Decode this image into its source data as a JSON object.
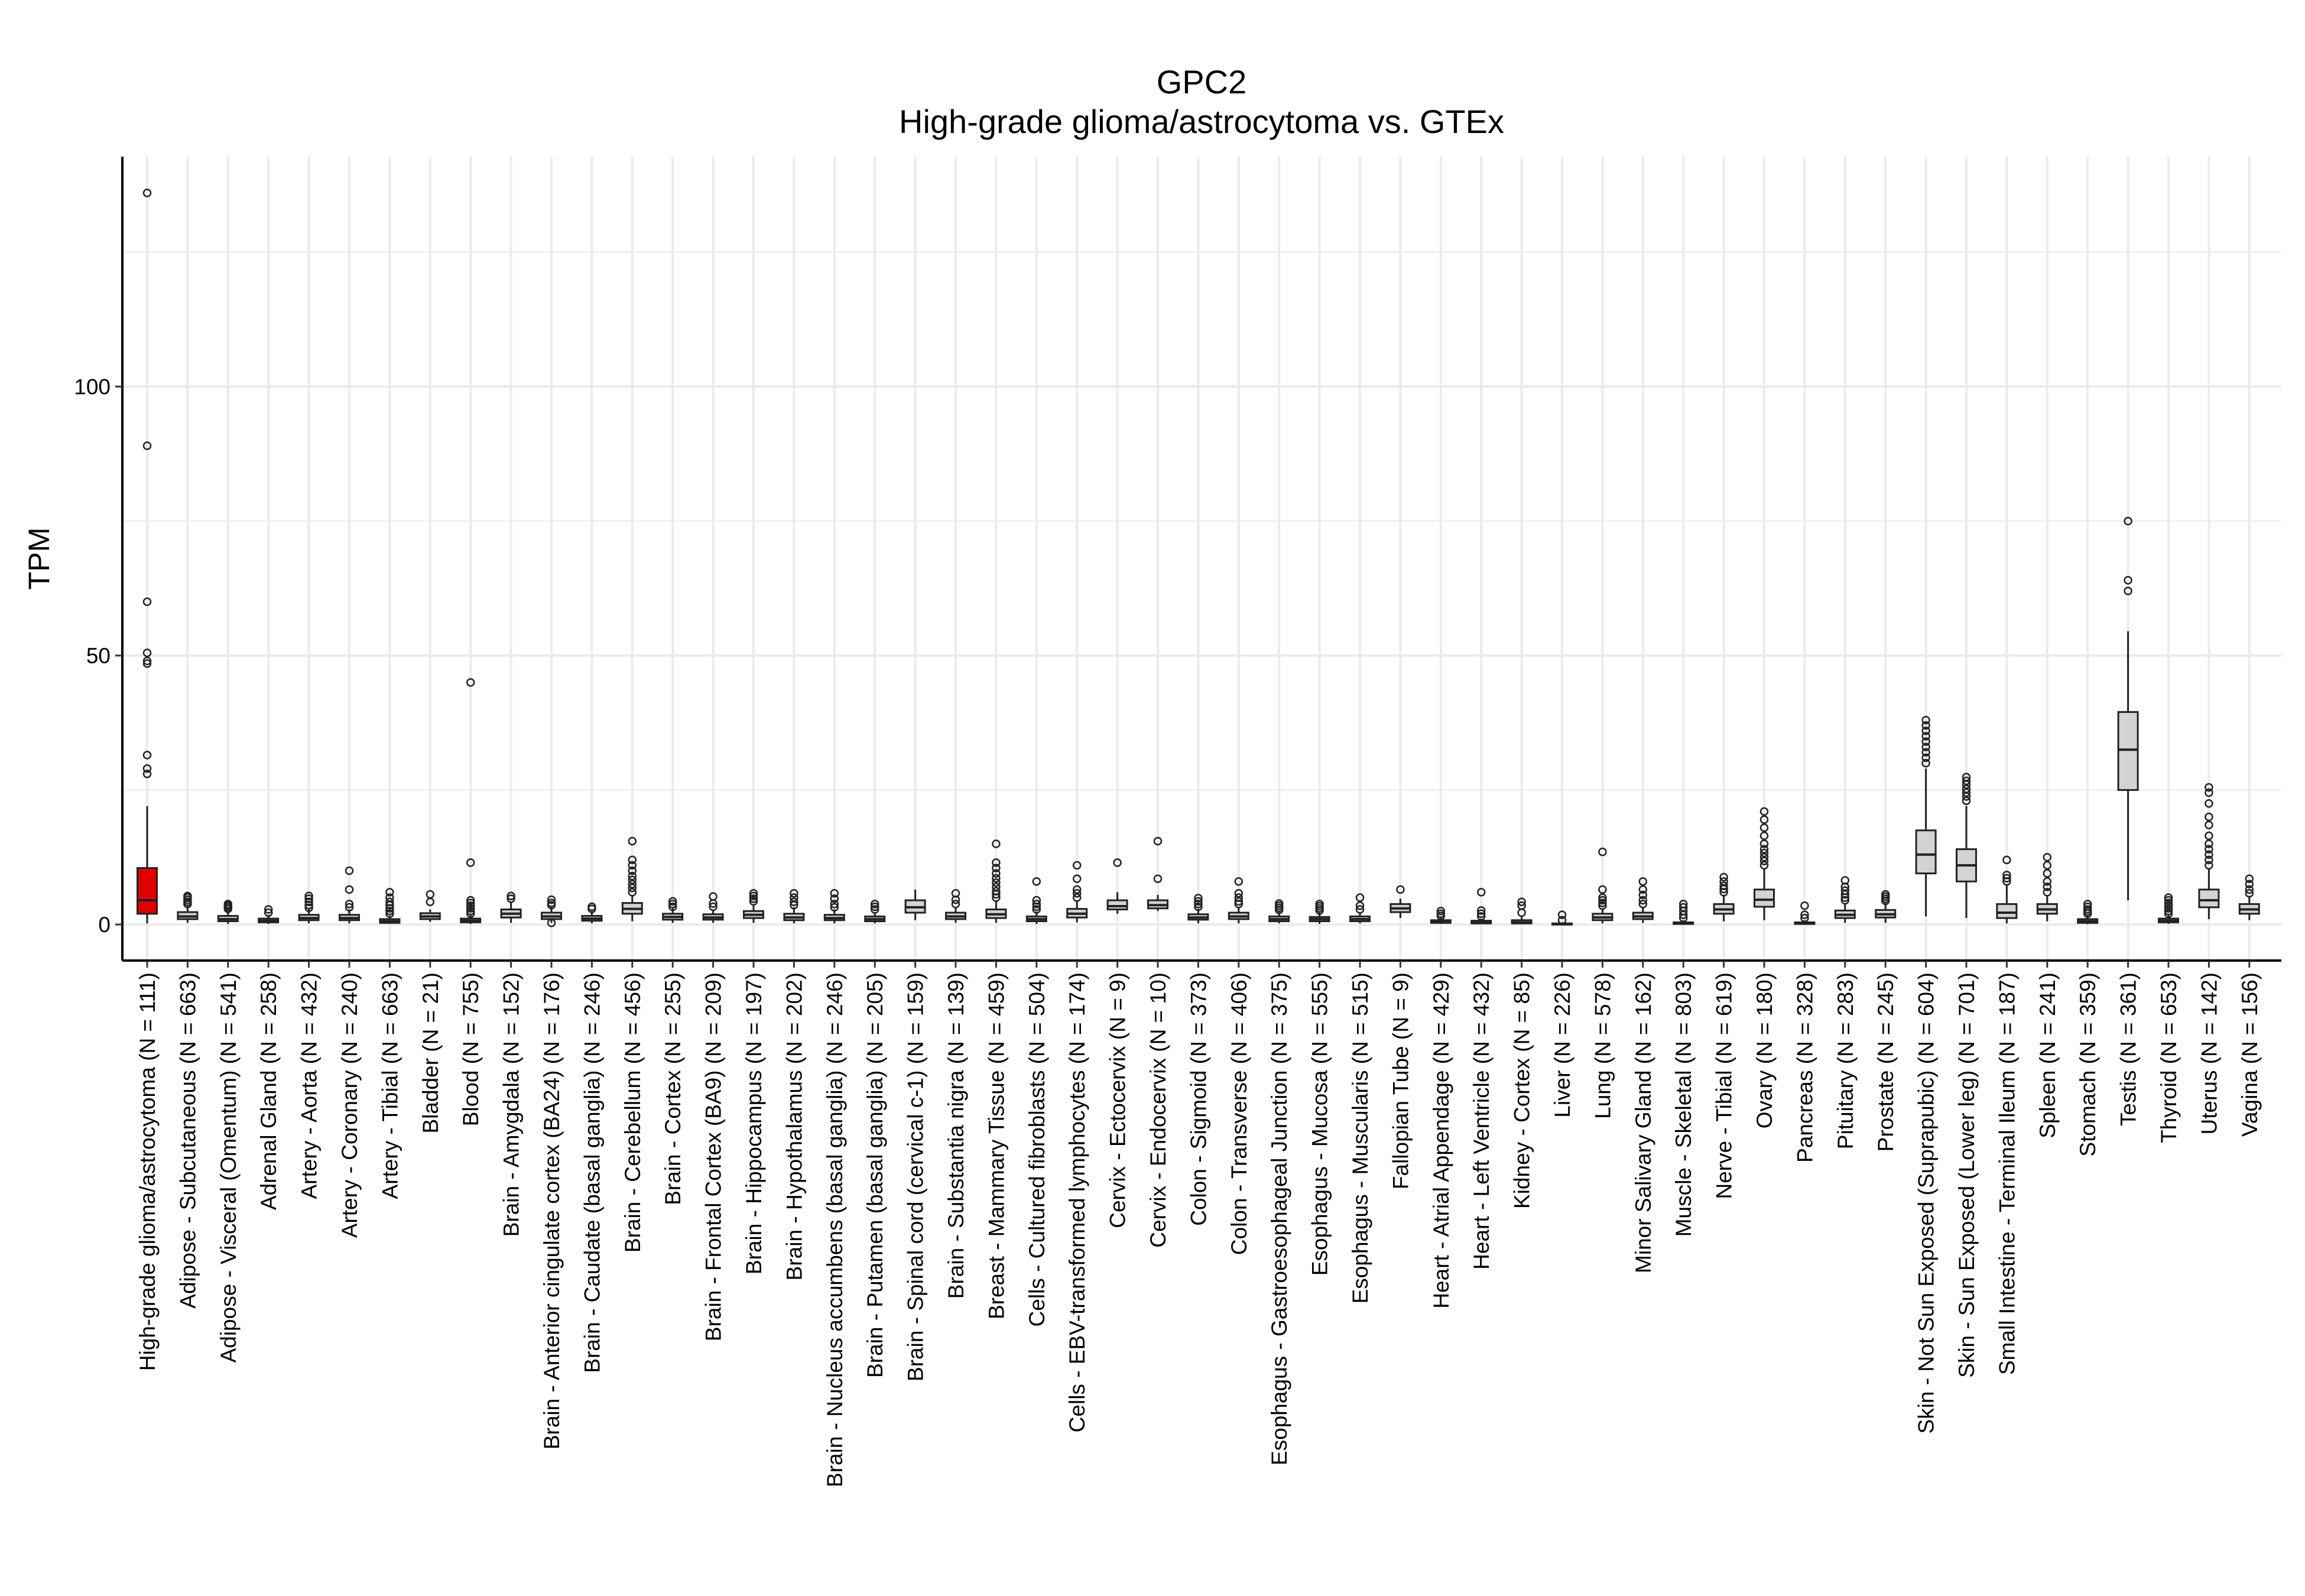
{
  "chart_data": {
    "type": "box",
    "title": "GPC2",
    "subtitle": "High-grade glioma/astrocytoma vs. GTEx",
    "xlabel": "",
    "ylabel": "TPM",
    "ylim": [
      -7,
      143
    ],
    "yticks": [
      0,
      50,
      100
    ],
    "grid": true,
    "legend": "none",
    "colors": {
      "highlight": "#e00000",
      "box": "#d3d3d3",
      "stroke": "#222222",
      "grid": "#ebebeb"
    },
    "categories": [
      "High-grade glioma/astrocytoma (N = 111)",
      "Adipose - Subcutaneous (N = 663)",
      "Adipose - Visceral (Omentum) (N = 541)",
      "Adrenal Gland (N = 258)",
      "Artery - Aorta (N = 432)",
      "Artery - Coronary (N = 240)",
      "Artery - Tibial (N = 663)",
      "Bladder (N = 21)",
      "Blood (N = 755)",
      "Brain - Amygdala (N = 152)",
      "Brain - Anterior cingulate cortex (BA24) (N = 176)",
      "Brain - Caudate (basal ganglia) (N = 246)",
      "Brain - Cerebellum (N = 456)",
      "Brain - Cortex (N = 255)",
      "Brain - Frontal Cortex (BA9) (N = 209)",
      "Brain - Hippocampus (N = 197)",
      "Brain - Hypothalamus (N = 202)",
      "Brain - Nucleus accumbens (basal ganglia) (N = 246)",
      "Brain - Putamen (basal ganglia) (N = 205)",
      "Brain - Spinal cord (cervical c-1) (N = 159)",
      "Brain - Substantia nigra (N = 139)",
      "Breast - Mammary Tissue (N = 459)",
      "Cells - Cultured fibroblasts (N = 504)",
      "Cells - EBV-transformed lymphocytes (N = 174)",
      "Cervix - Ectocervix (N = 9)",
      "Cervix - Endocervix (N = 10)",
      "Colon - Sigmoid (N = 373)",
      "Colon - Transverse (N = 406)",
      "Esophagus - Gastroesophageal Junction (N = 375)",
      "Esophagus - Mucosa (N = 555)",
      "Esophagus - Muscularis (N = 515)",
      "Fallopian Tube (N = 9)",
      "Heart - Atrial Appendage (N = 429)",
      "Heart - Left Ventricle (N = 432)",
      "Kidney - Cortex (N = 85)",
      "Liver (N = 226)",
      "Lung (N = 578)",
      "Minor Salivary Gland (N = 162)",
      "Muscle - Skeletal (N = 803)",
      "Nerve - Tibial (N = 619)",
      "Ovary (N = 180)",
      "Pancreas (N = 328)",
      "Pituitary (N = 283)",
      "Prostate (N = 245)",
      "Skin - Not Sun Exposed (Suprapubic) (N = 604)",
      "Skin - Sun Exposed (Lower leg) (N = 701)",
      "Small Intestine - Terminal Ileum (N = 187)",
      "Spleen (N = 241)",
      "Stomach (N = 359)",
      "Testis (N = 361)",
      "Thyroid (N = 653)",
      "Uterus (N = 142)",
      "Vagina (N = 156)"
    ],
    "boxes": [
      {
        "q1": 2,
        "median": 4.5,
        "q3": 10.5,
        "low": 0.2,
        "high": 22,
        "outliers": [
          136,
          89,
          60,
          50.5,
          49,
          48.5,
          31.5,
          29,
          28
        ]
      },
      {
        "q1": 1,
        "median": 1.5,
        "q3": 2.3,
        "low": 0.3,
        "high": 3.5,
        "outliers": [
          3.8,
          4.2,
          4.6,
          5.0,
          5.3
        ]
      },
      {
        "q1": 0.6,
        "median": 1.0,
        "q3": 1.6,
        "low": 0.1,
        "high": 2.6,
        "outliers": [
          2.9,
          3.2,
          3.5,
          3.8
        ]
      },
      {
        "q1": 0.4,
        "median": 0.7,
        "q3": 1.1,
        "low": 0.1,
        "high": 1.8,
        "outliers": [
          2.2,
          2.8
        ]
      },
      {
        "q1": 0.8,
        "median": 1.2,
        "q3": 1.8,
        "low": 0.2,
        "high": 2.8,
        "outliers": [
          3.1,
          3.6,
          4.2,
          4.8,
          5.3
        ]
      },
      {
        "q1": 0.8,
        "median": 1.2,
        "q3": 1.8,
        "low": 0.2,
        "high": 2.8,
        "outliers": [
          3.2,
          3.8,
          6.5,
          10
        ]
      },
      {
        "q1": 0.3,
        "median": 0.6,
        "q3": 1.0,
        "low": 0.1,
        "high": 1.6,
        "outliers": [
          2,
          2.5,
          3,
          3.6,
          4.2,
          5,
          6
        ]
      },
      {
        "q1": 1.0,
        "median": 1.5,
        "q3": 2.1,
        "low": 0.5,
        "high": 2.8,
        "outliers": [
          4.2,
          5.6
        ]
      },
      {
        "q1": 0.4,
        "median": 0.7,
        "q3": 1.1,
        "low": 0.1,
        "high": 1.7,
        "outliers": [
          2,
          2.5,
          3,
          3.5,
          4,
          4.5,
          11.5,
          45
        ]
      },
      {
        "q1": 1.3,
        "median": 2.0,
        "q3": 2.8,
        "low": 0.3,
        "high": 4.2,
        "outliers": [
          4.8,
          5.3
        ]
      },
      {
        "q1": 1.0,
        "median": 1.5,
        "q3": 2.2,
        "low": 0.3,
        "high": 3.2,
        "outliers": [
          0.3,
          3.6,
          4.0,
          4.6
        ]
      },
      {
        "q1": 0.7,
        "median": 1.1,
        "q3": 1.6,
        "low": 0.2,
        "high": 2.5,
        "outliers": [
          2.9,
          3.3
        ]
      },
      {
        "q1": 2.0,
        "median": 2.9,
        "q3": 4.0,
        "low": 0.6,
        "high": 5.5,
        "outliers": [
          6,
          6.8,
          7.5,
          8.3,
          9,
          10,
          11,
          12,
          15.5
        ]
      },
      {
        "q1": 0.9,
        "median": 1.4,
        "q3": 2.0,
        "low": 0.3,
        "high": 3.0,
        "outliers": [
          3.3,
          3.8,
          4.3
        ]
      },
      {
        "q1": 0.9,
        "median": 1.3,
        "q3": 1.9,
        "low": 0.3,
        "high": 2.8,
        "outliers": [
          3.3,
          3.9,
          5.2
        ]
      },
      {
        "q1": 1.2,
        "median": 1.8,
        "q3": 2.5,
        "low": 0.3,
        "high": 3.8,
        "outliers": [
          4.3,
          4.8,
          5.3,
          5.8
        ]
      },
      {
        "q1": 0.8,
        "median": 1.3,
        "q3": 2.0,
        "low": 0.2,
        "high": 3.2,
        "outliers": [
          3.6,
          4.2,
          5.0,
          5.8
        ]
      },
      {
        "q1": 0.8,
        "median": 1.2,
        "q3": 1.8,
        "low": 0.2,
        "high": 2.8,
        "outliers": [
          3.2,
          3.8,
          4.8,
          5.8
        ]
      },
      {
        "q1": 0.6,
        "median": 1.0,
        "q3": 1.5,
        "low": 0.2,
        "high": 2.3,
        "outliers": [
          2.8,
          3.3,
          3.8
        ]
      },
      {
        "q1": 2.2,
        "median": 3.2,
        "q3": 4.5,
        "low": 0.8,
        "high": 6.5,
        "outliers": []
      },
      {
        "q1": 1.0,
        "median": 1.5,
        "q3": 2.2,
        "low": 0.3,
        "high": 3.2,
        "outliers": [
          3.8,
          4.6,
          5.8
        ]
      },
      {
        "q1": 1.2,
        "median": 1.9,
        "q3": 2.8,
        "low": 0.3,
        "high": 4.5,
        "outliers": [
          5,
          5.6,
          6.2,
          7,
          7.8,
          8.6,
          9.5,
          10.5,
          11.5,
          15
        ]
      },
      {
        "q1": 0.6,
        "median": 1.0,
        "q3": 1.5,
        "low": 0.1,
        "high": 2.4,
        "outliers": [
          2.8,
          3.3,
          3.8,
          4.5,
          8
        ]
      },
      {
        "q1": 1.3,
        "median": 2.0,
        "q3": 2.9,
        "low": 0.4,
        "high": 4.5,
        "outliers": [
          5,
          5.8,
          6.5,
          8.5,
          11
        ]
      },
      {
        "q1": 2.8,
        "median": 3.4,
        "q3": 4.5,
        "low": 2.0,
        "high": 6.0,
        "outliers": [
          11.5
        ]
      },
      {
        "q1": 3.0,
        "median": 3.6,
        "q3": 4.5,
        "low": 2.5,
        "high": 5.5,
        "outliers": [
          8.5,
          15.5
        ]
      },
      {
        "q1": 0.9,
        "median": 1.3,
        "q3": 1.9,
        "low": 0.2,
        "high": 2.9,
        "outliers": [
          3.3,
          3.8,
          4.3,
          4.9
        ]
      },
      {
        "q1": 1.0,
        "median": 1.5,
        "q3": 2.2,
        "low": 0.2,
        "high": 3.3,
        "outliers": [
          3.8,
          4.3,
          5,
          5.8,
          8
        ]
      },
      {
        "q1": 0.6,
        "median": 1.0,
        "q3": 1.5,
        "low": 0.2,
        "high": 2.3,
        "outliers": [
          2.7,
          3.1,
          3.5,
          3.9
        ]
      },
      {
        "q1": 0.6,
        "median": 1.0,
        "q3": 1.4,
        "low": 0.1,
        "high": 2.2,
        "outliers": [
          2.6,
          3.0,
          3.4,
          3.8
        ]
      },
      {
        "q1": 0.6,
        "median": 1.0,
        "q3": 1.5,
        "low": 0.2,
        "high": 2.3,
        "outliers": [
          2.8,
          3.5,
          5
        ]
      },
      {
        "q1": 2.3,
        "median": 3.0,
        "q3": 3.8,
        "low": 1.2,
        "high": 4.8,
        "outliers": [
          6.5
        ]
      },
      {
        "q1": 0.3,
        "median": 0.5,
        "q3": 0.8,
        "low": 0.1,
        "high": 1.3,
        "outliers": [
          1.6,
          2.0,
          2.5
        ]
      },
      {
        "q1": 0.2,
        "median": 0.4,
        "q3": 0.7,
        "low": 0.05,
        "high": 1.1,
        "outliers": [
          1.5,
          2,
          2.6,
          6
        ]
      },
      {
        "q1": 0.2,
        "median": 0.4,
        "q3": 0.8,
        "low": 0.05,
        "high": 1.4,
        "outliers": [
          2.2,
          3.5,
          4.2
        ]
      },
      {
        "q1": 0.05,
        "median": 0.1,
        "q3": 0.2,
        "low": 0.0,
        "high": 0.4,
        "outliers": [
          0.8,
          1.8
        ]
      },
      {
        "q1": 0.8,
        "median": 1.3,
        "q3": 2.0,
        "low": 0.2,
        "high": 3.0,
        "outliers": [
          3.5,
          4,
          4.5,
          5,
          6.5,
          13.5
        ]
      },
      {
        "q1": 1.0,
        "median": 1.5,
        "q3": 2.2,
        "low": 0.3,
        "high": 3.3,
        "outliers": [
          3.8,
          4.5,
          5.5,
          6.5,
          8
        ]
      },
      {
        "q1": 0.1,
        "median": 0.2,
        "q3": 0.4,
        "low": 0.0,
        "high": 0.8,
        "outliers": [
          1.2,
          1.8,
          2.5,
          3.2,
          3.8
        ]
      },
      {
        "q1": 2.0,
        "median": 2.8,
        "q3": 3.8,
        "low": 0.6,
        "high": 5.5,
        "outliers": [
          6,
          6.6,
          7.2,
          8,
          8.8
        ]
      },
      {
        "q1": 3.3,
        "median": 4.6,
        "q3": 6.5,
        "low": 0.8,
        "high": 10.5,
        "outliers": [
          11,
          11.8,
          12.5,
          13.3,
          14,
          15,
          16.5,
          18,
          19.5,
          21
        ]
      },
      {
        "q1": 0.1,
        "median": 0.2,
        "q3": 0.4,
        "low": 0.0,
        "high": 0.8,
        "outliers": [
          1.2,
          1.8,
          3.5
        ]
      },
      {
        "q1": 1.2,
        "median": 1.8,
        "q3": 2.6,
        "low": 0.3,
        "high": 4.0,
        "outliers": [
          4.5,
          5,
          5.6,
          6.3,
          7,
          8.2
        ]
      },
      {
        "q1": 1.3,
        "median": 1.9,
        "q3": 2.7,
        "low": 0.3,
        "high": 4.0,
        "outliers": [
          4.4,
          4.8,
          5.2,
          5.6
        ]
      },
      {
        "q1": 9.5,
        "median": 13,
        "q3": 17.5,
        "low": 1.5,
        "high": 29,
        "outliers": [
          30,
          31,
          32,
          33,
          34,
          35,
          36,
          37,
          38
        ]
      },
      {
        "q1": 8,
        "median": 11,
        "q3": 14,
        "low": 1.2,
        "high": 22,
        "outliers": [
          23,
          23.8,
          24.5,
          25.2,
          26,
          26.7,
          27.4
        ]
      },
      {
        "q1": 1.2,
        "median": 2.2,
        "q3": 3.8,
        "low": 0.2,
        "high": 7.5,
        "outliers": [
          8,
          8.6,
          9.2,
          12
        ]
      },
      {
        "q1": 2.0,
        "median": 2.8,
        "q3": 3.8,
        "low": 0.6,
        "high": 5.5,
        "outliers": [
          6,
          7,
          8,
          9.5,
          11,
          12.5
        ]
      },
      {
        "q1": 0.3,
        "median": 0.6,
        "q3": 1.0,
        "low": 0.05,
        "high": 1.6,
        "outliers": [
          2,
          2.4,
          2.8,
          3.3,
          3.8
        ]
      },
      {
        "q1": 25,
        "median": 32.5,
        "q3": 39.5,
        "low": 4.5,
        "high": 54.5,
        "outliers": [
          62,
          64,
          75
        ]
      },
      {
        "q1": 0.4,
        "median": 0.7,
        "q3": 1.1,
        "low": 0.1,
        "high": 1.7,
        "outliers": [
          2,
          2.5,
          3,
          3.5,
          4,
          4.5,
          5
        ]
      },
      {
        "q1": 3.2,
        "median": 4.5,
        "q3": 6.5,
        "low": 1.0,
        "high": 10.5,
        "outliers": [
          11,
          12,
          13,
          14,
          15,
          16.5,
          18.5,
          20,
          22.5,
          24.5,
          25.5
        ]
      },
      {
        "q1": 2.0,
        "median": 2.8,
        "q3": 3.8,
        "low": 0.8,
        "high": 5.3,
        "outliers": [
          5.8,
          6.5,
          7.5,
          8.5
        ]
      }
    ]
  }
}
